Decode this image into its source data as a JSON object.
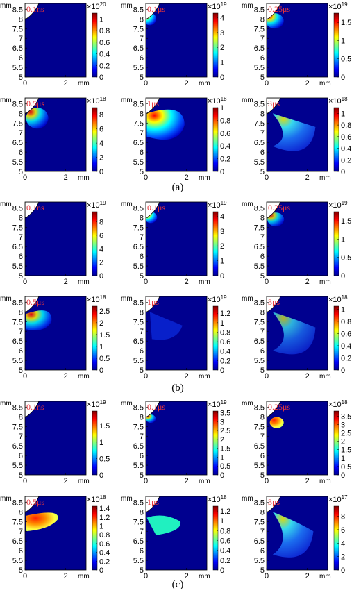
{
  "figure": {
    "axis_unit": "mm",
    "y_ticks": [
      "8.5",
      "8",
      "7.5",
      "7",
      "6.5",
      "6",
      "5.5",
      "5"
    ],
    "x_ticks": [
      "0",
      "2"
    ],
    "groups": [
      {
        "caption": "(a)",
        "panels": [
          {
            "time": "0.1ns",
            "multiplier": "×10",
            "exponent": "20",
            "cb_ticks": [
              "1",
              "0.8",
              "0.6",
              "0.4",
              "0.2",
              "0"
            ],
            "cb_max": 1.1
          },
          {
            "time": "0.1μs",
            "multiplier": "×10",
            "exponent": "19",
            "cb_ticks": [
              "4",
              "3",
              "2",
              "1",
              "0"
            ],
            "cb_max": 4.3
          },
          {
            "time": "0.25μs",
            "multiplier": "×10",
            "exponent": "19",
            "cb_ticks": [
              "1.5",
              "1",
              "0.5",
              "0"
            ],
            "cb_max": 1.75
          },
          {
            "time": "0.5μs",
            "multiplier": "×10",
            "exponent": "18",
            "cb_ticks": [
              "8",
              "6",
              "4",
              "2",
              "0"
            ],
            "cb_max": 9
          },
          {
            "time": "1μs",
            "multiplier": "×10",
            "exponent": "18",
            "cb_ticks": [
              "1",
              "0.8",
              "0.6",
              "0.4",
              "0.2",
              "0"
            ],
            "cb_max": 1
          },
          {
            "time": "3μs",
            "multiplier": "×10",
            "exponent": "18",
            "cb_ticks": [
              "1",
              "0.8",
              "0.6",
              "0.4",
              "0.2",
              "0"
            ],
            "cb_max": 1.1
          }
        ]
      },
      {
        "caption": "(b)",
        "panels": [
          {
            "time": "0.1ns",
            "multiplier": "×10",
            "exponent": "19",
            "cb_ticks": [
              "8",
              "6",
              "4",
              "2",
              "0"
            ],
            "cb_max": 9.5
          },
          {
            "time": "0.1μs",
            "multiplier": "×10",
            "exponent": "19",
            "cb_ticks": [
              "4",
              "3",
              "2",
              "1",
              "0"
            ],
            "cb_max": 4.3
          },
          {
            "time": "0.25μs",
            "multiplier": "×10",
            "exponent": "19",
            "cb_ticks": [
              "1.5",
              "1",
              "0.5",
              "0"
            ],
            "cb_max": 1.75
          },
          {
            "time": "0.5μs",
            "multiplier": "×10",
            "exponent": "18",
            "cb_ticks": [
              "2.5",
              "2",
              "1.5",
              "1",
              "0.5",
              "0"
            ],
            "cb_max": 2.7
          },
          {
            "time": "1μs",
            "multiplier": "×10",
            "exponent": "19",
            "cb_ticks": [
              "1.2",
              "1",
              "0.8",
              "0.6",
              "0.4",
              "0.2",
              "0"
            ],
            "cb_max": 1.35
          },
          {
            "time": "3μs",
            "multiplier": "×10",
            "exponent": "18",
            "cb_ticks": [
              "1",
              "0.8",
              "0.6",
              "0.4",
              "0.2",
              "0"
            ],
            "cb_max": 1.05
          }
        ]
      },
      {
        "caption": "(c)",
        "panels": [
          {
            "time": "0.1ns",
            "multiplier": "×10",
            "exponent": "19",
            "cb_ticks": [
              "1.5",
              "1",
              "0.5",
              "0"
            ],
            "cb_max": 1.95
          },
          {
            "time": "0.1μs",
            "multiplier": "×10",
            "exponent": "19",
            "cb_ticks": [
              "3.5",
              "3",
              "2.5",
              "2",
              "1.5",
              "1",
              "0.5",
              "0"
            ],
            "cb_max": 3.6
          },
          {
            "time": "0.25μs",
            "multiplier": "×10",
            "exponent": "18",
            "cb_ticks": [
              "3.5",
              "3",
              "2.5",
              "2",
              "1.5",
              "1",
              "0.5",
              "0"
            ],
            "cb_max": 3.8
          },
          {
            "time": "0.5μs",
            "multiplier": "×10",
            "exponent": "18",
            "cb_ticks": [
              "1.4",
              "1.2",
              "1",
              "0.8",
              "0.6",
              "0.4",
              "0.2",
              "0"
            ],
            "cb_max": 1.45
          },
          {
            "time": "1μs",
            "multiplier": "×10",
            "exponent": "18",
            "cb_ticks": [
              "1.2",
              "1",
              "0.8",
              "0.6",
              "0.4",
              "0.2",
              "0"
            ],
            "cb_max": 1.3
          },
          {
            "time": "3μs",
            "multiplier": "×10",
            "exponent": "17",
            "cb_ticks": [
              "8",
              "6",
              "4",
              "2",
              "0"
            ],
            "cb_max": 9.5
          }
        ]
      }
    ]
  }
}
